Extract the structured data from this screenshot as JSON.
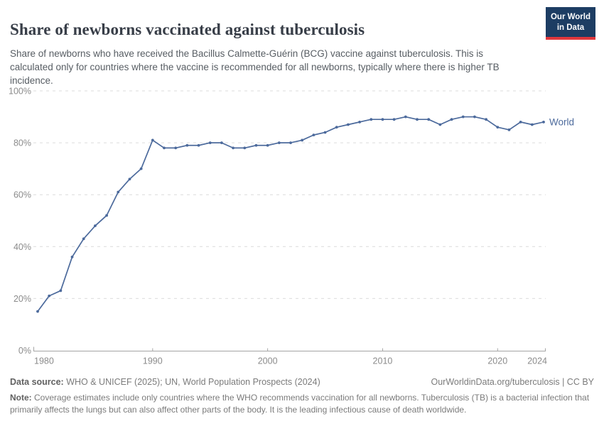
{
  "header": {
    "title": "Share of newborns vaccinated against tuberculosis",
    "subtitle": "Share of newborns who have received the Bacillus Calmette-Guérin (BCG) vaccine against tuberculosis. This is calculated only for countries where the vaccine is recommended for all newborns, typically where there is higher TB incidence.",
    "logo": {
      "line1": "Our World",
      "line2": "in Data",
      "bg_color": "#1d3d63",
      "accent_color": "#e0373c"
    }
  },
  "chart_data": {
    "type": "line",
    "title": "Share of newborns vaccinated against tuberculosis",
    "xlabel": "",
    "ylabel": "",
    "xlim": [
      1980,
      2024
    ],
    "ylim": [
      0,
      100
    ],
    "x_ticks": [
      1980,
      1990,
      2000,
      2010,
      2020,
      2024
    ],
    "y_ticks": [
      0,
      20,
      40,
      60,
      80,
      100
    ],
    "y_tick_suffix": "%",
    "grid": "horizontal-dashed",
    "legend_position": "end-of-line",
    "colors": {
      "line": "#4c6a9c",
      "gridline": "#dcdcdc",
      "axis": "#a5a5a5",
      "tick_label": "#8b8b8b"
    },
    "series": [
      {
        "name": "World",
        "color": "#4c6a9c",
        "x": [
          1980,
          1981,
          1982,
          1983,
          1984,
          1985,
          1986,
          1987,
          1988,
          1989,
          1990,
          1991,
          1992,
          1993,
          1994,
          1995,
          1996,
          1997,
          1998,
          1999,
          2000,
          2001,
          2002,
          2003,
          2004,
          2005,
          2006,
          2007,
          2008,
          2009,
          2010,
          2011,
          2012,
          2013,
          2014,
          2015,
          2016,
          2017,
          2018,
          2019,
          2020,
          2021,
          2022,
          2023,
          2024
        ],
        "values": [
          15,
          21,
          23,
          36,
          43,
          48,
          52,
          61,
          66,
          70,
          81,
          78,
          78,
          79,
          79,
          80,
          80,
          78,
          78,
          79,
          79,
          80,
          80,
          81,
          83,
          84,
          86,
          87,
          88,
          89,
          89,
          89,
          90,
          89,
          89,
          87,
          89,
          90,
          90,
          89,
          86,
          85,
          88,
          87,
          88
        ]
      }
    ]
  },
  "footer": {
    "datasource_label": "Data source:",
    "datasource": "WHO & UNICEF (2025); UN, World Population Prospects (2024)",
    "link": "OurWorldinData.org/tuberculosis | CC BY",
    "note_label": "Note:",
    "note": "Coverage estimates include only countries where the WHO recommends vaccination for all newborns. Tuberculosis (TB) is a bacterial infection that primarily affects the lungs but can also affect other parts of the body. It is the leading infectious cause of death worldwide."
  }
}
